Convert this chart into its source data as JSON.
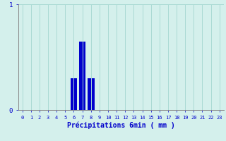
{
  "hours": [
    0,
    1,
    2,
    3,
    4,
    5,
    6,
    7,
    8,
    9,
    10,
    11,
    12,
    13,
    14,
    15,
    16,
    17,
    18,
    19,
    20,
    21,
    22,
    23
  ],
  "values": [
    0,
    0,
    0,
    0,
    0,
    0,
    0.3,
    0.65,
    0.3,
    0,
    0,
    0,
    0,
    0,
    0,
    0,
    0,
    0,
    0,
    0,
    0,
    0,
    0,
    0
  ],
  "bar_color": "#0000cc",
  "background_color": "#d4f0ec",
  "grid_color": "#aadad4",
  "xlabel": "Précipitations 6min ( mm )",
  "ylim": [
    0,
    1
  ],
  "xlim": [
    -0.5,
    23.5
  ],
  "yticks": [
    0,
    1
  ],
  "xticks": [
    0,
    1,
    2,
    3,
    4,
    5,
    6,
    7,
    8,
    9,
    10,
    11,
    12,
    13,
    14,
    15,
    16,
    17,
    18,
    19,
    20,
    21,
    22,
    23
  ],
  "xlabel_color": "#0000cc",
  "tick_color": "#0000cc",
  "xlabel_fontsize": 7,
  "tick_fontsize": 5,
  "ytick_fontsize": 6.5,
  "bar_width": 0.8
}
